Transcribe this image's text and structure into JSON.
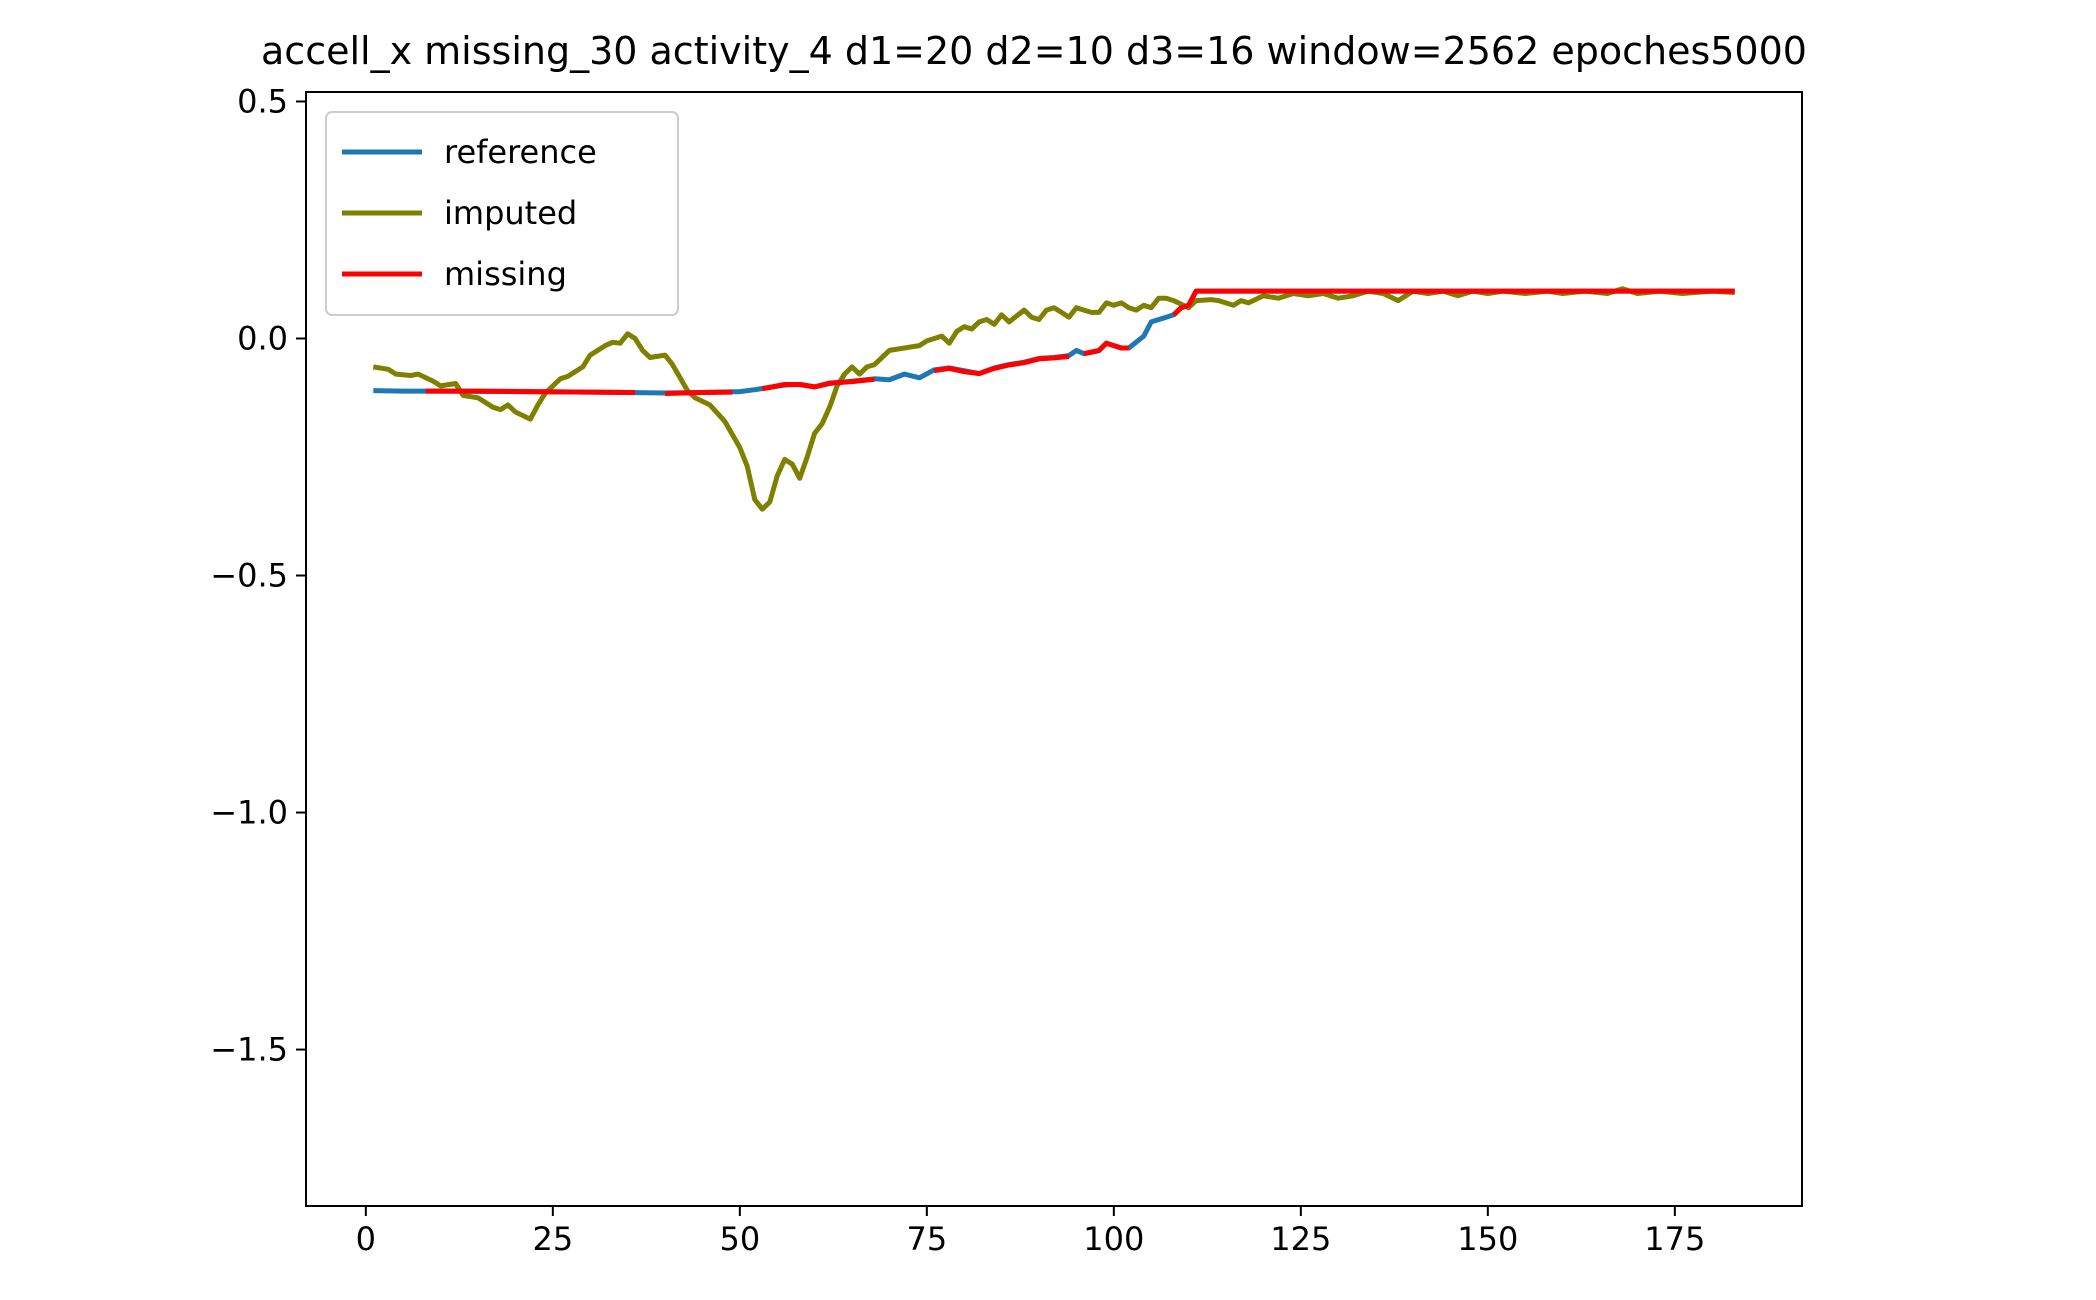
{
  "chart_data": {
    "type": "line",
    "title": "accell_x missing_30 activity_4 d1=20 d2=10 d3=16 window=2562 epoches5000",
    "xlabel": "",
    "ylabel": "",
    "xlim": [
      -8,
      192
    ],
    "ylim": [
      -1.83,
      0.52
    ],
    "xticks": [
      0,
      25,
      50,
      75,
      100,
      125,
      150,
      175
    ],
    "xtick_labels": [
      "0",
      "25",
      "50",
      "75",
      "100",
      "125",
      "150",
      "175"
    ],
    "yticks": [
      0.5,
      0.0,
      -0.5,
      -1.0,
      -1.5
    ],
    "ytick_labels": [
      "0.5",
      "0.0",
      "−0.5",
      "−1.0",
      "−1.5"
    ],
    "grid": false,
    "legend_position": "top-left",
    "series": [
      {
        "name": "reference",
        "color": "#1f77b4",
        "points": [
          [
            1,
            -0.11
          ],
          [
            5,
            -0.111
          ],
          [
            10,
            -0.111
          ],
          [
            20,
            -0.112
          ],
          [
            30,
            -0.113
          ],
          [
            40,
            -0.115
          ],
          [
            45,
            -0.114
          ],
          [
            50,
            -0.112
          ],
          [
            52,
            -0.108
          ],
          [
            56,
            -0.098
          ],
          [
            58,
            -0.097
          ],
          [
            60,
            -0.102
          ],
          [
            62,
            -0.095
          ],
          [
            65,
            -0.09
          ],
          [
            68,
            -0.085
          ],
          [
            70,
            -0.087
          ],
          [
            72,
            -0.075
          ],
          [
            74,
            -0.083
          ],
          [
            76,
            -0.066
          ],
          [
            78,
            -0.062
          ],
          [
            80,
            -0.068
          ],
          [
            82,
            -0.074
          ],
          [
            84,
            -0.062
          ],
          [
            86,
            -0.055
          ],
          [
            88,
            -0.05
          ],
          [
            90,
            -0.042
          ],
          [
            92,
            -0.04
          ],
          [
            94,
            -0.036
          ],
          [
            95,
            -0.025
          ],
          [
            96,
            -0.032
          ],
          [
            98,
            -0.026
          ],
          [
            99,
            -0.01
          ],
          [
            101,
            -0.02
          ],
          [
            102,
            -0.02
          ],
          [
            104,
            0.005
          ],
          [
            105,
            0.035
          ],
          [
            107,
            0.045
          ],
          [
            108,
            0.05
          ],
          [
            109,
            0.065
          ],
          [
            110,
            0.07
          ],
          [
            111,
            0.1
          ],
          [
            120,
            0.1
          ],
          [
            140,
            0.1
          ],
          [
            160,
            0.1
          ],
          [
            170,
            0.1
          ],
          [
            183,
            0.1
          ]
        ]
      },
      {
        "name": "imputed",
        "color": "#808000",
        "points": [
          [
            1,
            -0.06
          ],
          [
            3,
            -0.065
          ],
          [
            4,
            -0.075
          ],
          [
            6,
            -0.078
          ],
          [
            7,
            -0.075
          ],
          [
            9,
            -0.09
          ],
          [
            10,
            -0.1
          ],
          [
            12,
            -0.095
          ],
          [
            13,
            -0.12
          ],
          [
            15,
            -0.125
          ],
          [
            17,
            -0.145
          ],
          [
            18,
            -0.15
          ],
          [
            19,
            -0.14
          ],
          [
            20,
            -0.155
          ],
          [
            22,
            -0.17
          ],
          [
            23,
            -0.14
          ],
          [
            24,
            -0.115
          ],
          [
            26,
            -0.085
          ],
          [
            27,
            -0.08
          ],
          [
            29,
            -0.06
          ],
          [
            30,
            -0.035
          ],
          [
            32,
            -0.015
          ],
          [
            33,
            -0.008
          ],
          [
            34,
            -0.01
          ],
          [
            35,
            0.01
          ],
          [
            36,
            0.0
          ],
          [
            37,
            -0.025
          ],
          [
            38,
            -0.04
          ],
          [
            40,
            -0.035
          ],
          [
            41,
            -0.055
          ],
          [
            43,
            -0.11
          ],
          [
            44,
            -0.125
          ],
          [
            46,
            -0.14
          ],
          [
            48,
            -0.175
          ],
          [
            50,
            -0.23
          ],
          [
            51,
            -0.27
          ],
          [
            52,
            -0.34
          ],
          [
            53,
            -0.36
          ],
          [
            54,
            -0.345
          ],
          [
            55,
            -0.29
          ],
          [
            56,
            -0.255
          ],
          [
            57,
            -0.265
          ],
          [
            58,
            -0.295
          ],
          [
            59,
            -0.25
          ],
          [
            60,
            -0.2
          ],
          [
            61,
            -0.18
          ],
          [
            62,
            -0.145
          ],
          [
            63,
            -0.1
          ],
          [
            64,
            -0.075
          ],
          [
            65,
            -0.06
          ],
          [
            66,
            -0.075
          ],
          [
            67,
            -0.06
          ],
          [
            68,
            -0.055
          ],
          [
            69,
            -0.04
          ],
          [
            70,
            -0.025
          ],
          [
            72,
            -0.02
          ],
          [
            74,
            -0.015
          ],
          [
            75,
            -0.005
          ],
          [
            77,
            0.005
          ],
          [
            78,
            -0.01
          ],
          [
            79,
            0.015
          ],
          [
            80,
            0.025
          ],
          [
            81,
            0.02
          ],
          [
            82,
            0.035
          ],
          [
            83,
            0.04
          ],
          [
            84,
            0.03
          ],
          [
            85,
            0.05
          ],
          [
            86,
            0.035
          ],
          [
            88,
            0.06
          ],
          [
            89,
            0.045
          ],
          [
            90,
            0.04
          ],
          [
            91,
            0.06
          ],
          [
            92,
            0.065
          ],
          [
            93,
            0.055
          ],
          [
            94,
            0.045
          ],
          [
            95,
            0.065
          ],
          [
            96,
            0.06
          ],
          [
            97,
            0.055
          ],
          [
            98,
            0.055
          ],
          [
            99,
            0.075
          ],
          [
            100,
            0.07
          ],
          [
            101,
            0.075
          ],
          [
            102,
            0.065
          ],
          [
            103,
            0.06
          ],
          [
            104,
            0.07
          ],
          [
            105,
            0.065
          ],
          [
            106,
            0.085
          ],
          [
            107,
            0.085
          ],
          [
            108,
            0.08
          ],
          [
            110,
            0.065
          ],
          [
            111,
            0.08
          ],
          [
            113,
            0.082
          ],
          [
            114,
            0.08
          ],
          [
            116,
            0.07
          ],
          [
            117,
            0.08
          ],
          [
            118,
            0.075
          ],
          [
            120,
            0.09
          ],
          [
            122,
            0.085
          ],
          [
            124,
            0.095
          ],
          [
            126,
            0.09
          ],
          [
            128,
            0.095
          ],
          [
            130,
            0.085
          ],
          [
            132,
            0.09
          ],
          [
            134,
            0.1
          ],
          [
            136,
            0.095
          ],
          [
            138,
            0.08
          ],
          [
            140,
            0.1
          ],
          [
            142,
            0.095
          ],
          [
            144,
            0.1
          ],
          [
            146,
            0.09
          ],
          [
            148,
            0.1
          ],
          [
            150,
            0.095
          ],
          [
            152,
            0.1
          ],
          [
            155,
            0.095
          ],
          [
            158,
            0.1
          ],
          [
            160,
            0.095
          ],
          [
            163,
            0.1
          ],
          [
            166,
            0.095
          ],
          [
            168,
            0.105
          ],
          [
            170,
            0.095
          ],
          [
            173,
            0.1
          ],
          [
            176,
            0.095
          ],
          [
            180,
            0.1
          ],
          [
            183,
            0.097
          ]
        ]
      },
      {
        "name": "missing",
        "color": "#ff0000",
        "segments": [
          [
            [
              8,
              -0.111
            ],
            [
              15,
              -0.111
            ],
            [
              22,
              -0.112
            ],
            [
              30,
              -0.113
            ],
            [
              36,
              -0.114
            ]
          ],
          [
            [
              40,
              -0.116
            ],
            [
              45,
              -0.114
            ],
            [
              49,
              -0.113
            ]
          ],
          [
            [
              53,
              -0.106
            ],
            [
              56,
              -0.097
            ],
            [
              58,
              -0.097
            ],
            [
              60,
              -0.102
            ],
            [
              62,
              -0.094
            ],
            [
              65,
              -0.091
            ],
            [
              68,
              -0.086
            ]
          ],
          [
            [
              76,
              -0.068
            ],
            [
              78,
              -0.063
            ],
            [
              80,
              -0.07
            ],
            [
              82,
              -0.074
            ],
            [
              84,
              -0.063
            ],
            [
              86,
              -0.056
            ],
            [
              88,
              -0.051
            ],
            [
              90,
              -0.043
            ],
            [
              92,
              -0.041
            ],
            [
              94,
              -0.038
            ]
          ],
          [
            [
              96,
              -0.032
            ],
            [
              98,
              -0.025
            ],
            [
              99,
              -0.01
            ],
            [
              101,
              -0.02
            ],
            [
              102,
              -0.02
            ]
          ],
          [
            [
              108,
              0.05
            ],
            [
              109,
              0.065
            ],
            [
              110,
              0.07
            ],
            [
              111,
              0.1
            ],
            [
              125,
              0.1
            ],
            [
              140,
              0.1
            ],
            [
              160,
              0.1
            ],
            [
              175,
              0.1
            ],
            [
              183,
              0.1
            ]
          ]
        ]
      }
    ]
  }
}
